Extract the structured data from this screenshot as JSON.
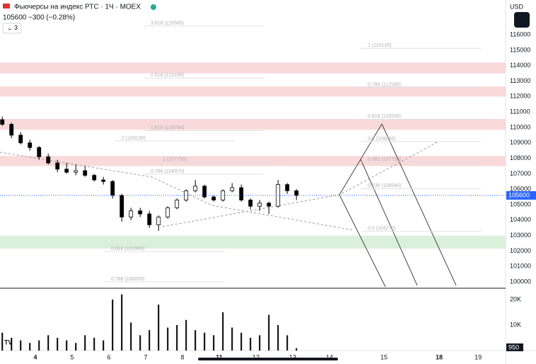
{
  "header": {
    "title": "Фьючерсы на индекс РТС · 1Ч · MOEX",
    "price": "105600",
    "change": "−300 (−0.28%)",
    "indicators": "3",
    "currency": "USD"
  },
  "chart_data": [
    {
      "type": "candlestick",
      "x": [
        0.1,
        0.35,
        0.6,
        0.85,
        1.1,
        1.35,
        1.6,
        1.85,
        2.1,
        2.35,
        2.6,
        2.85,
        3.1,
        3.35,
        3.6,
        3.85,
        4.1,
        4.35,
        4.6,
        4.85,
        5.1,
        5.35,
        5.6,
        5.85,
        6.1,
        6.35,
        6.6,
        6.85,
        7.1,
        7.35,
        7.6,
        7.85,
        8.1
      ],
      "open": [
        110500,
        110200,
        109500,
        109000,
        108700,
        108100,
        107700,
        107300,
        107100,
        107200,
        106900,
        106600,
        106500,
        105600,
        104200,
        104600,
        104400,
        103700,
        104200,
        104800,
        105300,
        105900,
        106200,
        105500,
        105300,
        105900,
        106100,
        105300,
        104900,
        105100,
        104900,
        106300,
        105900
      ],
      "high": [
        110700,
        110300,
        109700,
        109200,
        108800,
        108300,
        107900,
        107700,
        107600,
        107500,
        107000,
        106800,
        106600,
        105700,
        104800,
        104800,
        104600,
        104300,
        104900,
        105400,
        106000,
        106600,
        106300,
        105600,
        106000,
        106400,
        106300,
        105400,
        105300,
        105200,
        106600,
        106400,
        106000
      ],
      "low": [
        110100,
        109300,
        108900,
        108500,
        107900,
        107600,
        107100,
        107000,
        106900,
        106800,
        106500,
        106300,
        105400,
        103900,
        104000,
        104200,
        103500,
        103300,
        104100,
        104700,
        105200,
        105800,
        105400,
        105200,
        105200,
        105800,
        105200,
        104700,
        104600,
        104400,
        104800,
        105700,
        105300
      ],
      "close": [
        110200,
        109500,
        109000,
        108700,
        108100,
        107700,
        107300,
        107100,
        107200,
        106900,
        106600,
        106500,
        105600,
        104200,
        104600,
        104400,
        103700,
        104200,
        104800,
        105300,
        105900,
        106200,
        105500,
        105300,
        105900,
        106100,
        105300,
        104900,
        105100,
        104900,
        106300,
        105900,
        105600
      ],
      "color": "#000000",
      "xlim": [
        0.038,
        13.788
      ],
      "xticks": [
        {
          "value": 1,
          "label": "4"
        },
        {
          "value": 2,
          "label": "5"
        },
        {
          "value": 3,
          "label": "6"
        },
        {
          "value": 4,
          "label": "7"
        },
        {
          "value": 5,
          "label": "8"
        },
        {
          "value": 6,
          "label": "11"
        },
        {
          "value": 7,
          "label": "12"
        },
        {
          "value": 8,
          "label": "13"
        },
        {
          "value": 9,
          "label": "14"
        },
        {
          "value": 10.48,
          "label": "15"
        },
        {
          "value": 11.98,
          "label": "18"
        },
        {
          "value": 13.04,
          "label": "19"
        }
      ],
      "ylim": [
        99590,
        118250
      ],
      "yticks": [
        100000,
        101000,
        102000,
        103000,
        104000,
        105000,
        106000,
        107000,
        108000,
        109000,
        110000,
        111000,
        112000,
        113000,
        114000,
        115000,
        116000
      ],
      "zones": [
        {
          "from": 113500,
          "to": 114200,
          "color": "#f8d0d0"
        },
        {
          "from": 112000,
          "to": 112650,
          "color": "#f8d0d0"
        },
        {
          "from": 109850,
          "to": 110550,
          "color": "#f8d0d0"
        },
        {
          "from": 107500,
          "to": 108150,
          "color": "#f8d0d0"
        },
        {
          "from": 102150,
          "to": 103000,
          "color": "#d2ecd2"
        }
      ],
      "annotations": [
        {
          "text": "3.618 (116560)",
          "price": 116560
        },
        {
          "text": "1 (115120)",
          "price": 115120
        },
        {
          "text": "2.618 (113190)",
          "price": 113190
        },
        {
          "text": "0.786 (112580)",
          "price": 112580
        },
        {
          "text": "0.618 (110530)",
          "price": 110530
        },
        {
          "text": "1.618 (109790)",
          "price": 109790
        },
        {
          "text": "0 (109130)",
          "price": 109130
        },
        {
          "text": "0.5 (109080)",
          "price": 109080
        },
        {
          "text": "1 (107750)",
          "price": 107750
        },
        {
          "text": "0.382 (107750)",
          "price": 107750
        },
        {
          "text": "0.786 (106970)",
          "price": 106970
        },
        {
          "text": "0.236 (106040)",
          "price": 106040
        },
        {
          "text": "0.5 (103270)",
          "price": 103270
        },
        {
          "text": "0.618 (101960)",
          "price": 101960
        },
        {
          "text": "0.786 (100000)",
          "price": 100000
        }
      ]
    },
    {
      "type": "bar",
      "values": [
        7000,
        5000,
        4000,
        3000,
        4000,
        6000,
        5000,
        4000,
        3000,
        6000,
        5000,
        4000,
        20000,
        22000,
        11000,
        6000,
        8000,
        18000,
        9000,
        10000,
        12000,
        8000,
        7000,
        6000,
        15000,
        9000,
        7000,
        5000,
        6000,
        14000,
        10000,
        6000,
        950
      ],
      "color": "#000000",
      "ylim": [
        0,
        23600
      ],
      "yticks": [
        {
          "value": 10000,
          "label": "10K"
        },
        {
          "value": 20000,
          "label": "20K"
        }
      ]
    }
  ]
}
